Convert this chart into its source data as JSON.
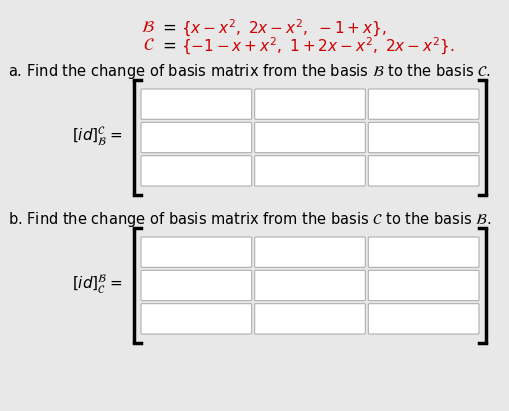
{
  "bg_color": "#e8e8e8",
  "basis_B_left": "\\mathcal{B}",
  "basis_C_left": "\\mathcal{C}",
  "basis_B_right": "\\{x - x^2,\\ 2x - x^2,\\ -1 + x\\},",
  "basis_C_right": "\\{-1 - x + x^2,\\ 1 + 2x - x^2,\\ 2x - x^2\\}.",
  "label_a": "a. Find the change of basis matrix from the basis $\\mathcal{B}$ to the basis $\\mathcal{C}$.",
  "label_b": "b. Find the change of basis matrix from the basis $\\mathcal{C}$ to the basis $\\mathcal{B}$.",
  "red_color": "#cc0000",
  "black_color": "#000000",
  "box_color": "#ffffff",
  "box_edge_color": "#b0b0b0",
  "bracket_color": "#000000",
  "n_rows": 3,
  "n_cols": 3,
  "fig_width": 5.1,
  "fig_height": 4.11,
  "dpi": 100
}
